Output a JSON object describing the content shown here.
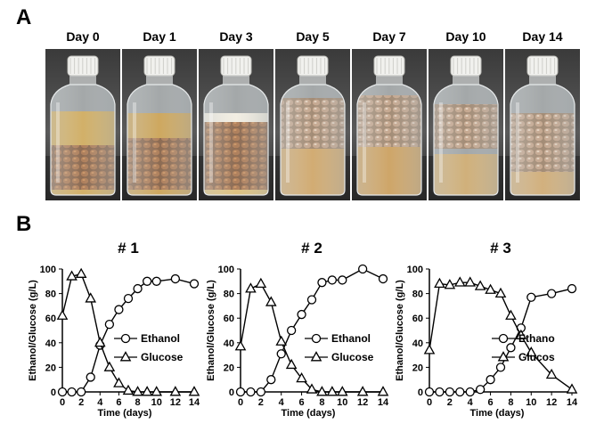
{
  "panels": {
    "a": "A",
    "b": "B"
  },
  "photo_days": [
    "Day 0",
    "Day 1",
    "Day 3",
    "Day 5",
    "Day 7",
    "Day 10",
    "Day 14"
  ],
  "chart_data": [
    {
      "type": "line",
      "title": "# 1",
      "xlabel": "Time (days)",
      "ylabel": "Ethanol/Glucose (g/L)",
      "xlim": [
        0,
        14
      ],
      "ylim": [
        0,
        100
      ],
      "xticks": [
        0,
        2,
        4,
        6,
        8,
        10,
        12,
        14
      ],
      "yticks": [
        0,
        20,
        40,
        60,
        80,
        100
      ],
      "legend_position": "right",
      "series": [
        {
          "name": "Ethanol",
          "marker": "circle",
          "x": [
            0,
            1,
            2,
            3,
            4,
            5,
            6,
            7,
            8,
            9,
            10,
            12,
            14
          ],
          "y": [
            0,
            0,
            0,
            12,
            38,
            55,
            67,
            76,
            84,
            90,
            90,
            92,
            88
          ]
        },
        {
          "name": "Glucose",
          "marker": "triangle",
          "x": [
            0,
            1,
            2,
            3,
            4,
            5,
            6,
            7,
            8,
            9,
            10,
            12,
            14
          ],
          "y": [
            62,
            94,
            96,
            76,
            40,
            20,
            7,
            1,
            0,
            0,
            0,
            0,
            0
          ]
        }
      ]
    },
    {
      "type": "line",
      "title": "# 2",
      "xlabel": "Time (days)",
      "ylabel": "Ethanol/Glucose (g/L)",
      "xlim": [
        0,
        14
      ],
      "ylim": [
        0,
        100
      ],
      "xticks": [
        0,
        2,
        4,
        6,
        8,
        10,
        12,
        14
      ],
      "yticks": [
        0,
        20,
        40,
        60,
        80,
        100
      ],
      "legend_position": "right",
      "series": [
        {
          "name": "Ethanol",
          "marker": "circle",
          "x": [
            0,
            1,
            2,
            3,
            4,
            5,
            6,
            7,
            8,
            9,
            10,
            12,
            14
          ],
          "y": [
            0,
            0,
            0,
            10,
            31,
            50,
            63,
            75,
            89,
            91,
            91,
            100,
            92
          ]
        },
        {
          "name": "Glucose",
          "marker": "triangle",
          "x": [
            0,
            1,
            2,
            3,
            4,
            5,
            6,
            7,
            8,
            9,
            10,
            12,
            14
          ],
          "y": [
            37,
            84,
            88,
            73,
            41,
            22,
            11,
            2,
            0,
            0,
            0,
            0,
            0
          ]
        }
      ]
    },
    {
      "type": "line",
      "title": "# 3",
      "xlabel": "Time (days)",
      "ylabel": "Ethanol/Glucose (g/L)",
      "xlim": [
        0,
        14
      ],
      "ylim": [
        0,
        100
      ],
      "xticks": [
        0,
        2,
        4,
        6,
        8,
        10,
        12,
        14
      ],
      "yticks": [
        0,
        20,
        40,
        60,
        80,
        100
      ],
      "legend_position": "right",
      "series": [
        {
          "name": "Ethano",
          "marker": "circle",
          "x": [
            0,
            1,
            2,
            3,
            4,
            5,
            6,
            7,
            8,
            9,
            10,
            12,
            14
          ],
          "y": [
            0,
            0,
            0,
            0,
            0,
            2,
            10,
            20,
            36,
            52,
            77,
            80,
            84
          ]
        },
        {
          "name": "Glucos",
          "marker": "triangle",
          "x": [
            0,
            1,
            2,
            3,
            4,
            5,
            6,
            7,
            8,
            9,
            10,
            12,
            14
          ],
          "y": [
            34,
            88,
            87,
            89,
            89,
            86,
            83,
            80,
            62,
            46,
            32,
            14,
            2
          ]
        }
      ]
    }
  ]
}
